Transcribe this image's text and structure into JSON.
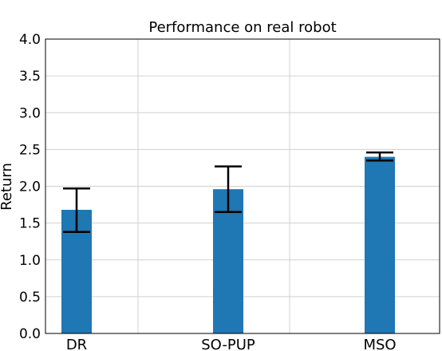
{
  "chart_data": {
    "type": "bar",
    "title": "Performance on real robot",
    "xlabel": "",
    "ylabel": "Return",
    "categories": [
      "DR",
      "SO-PUP",
      "MSO"
    ],
    "values": [
      1.68,
      1.96,
      2.4
    ],
    "error_low": [
      1.38,
      1.65,
      2.35
    ],
    "error_high": [
      1.97,
      2.27,
      2.46
    ],
    "ylim": [
      0,
      4.0
    ],
    "yticks": [
      "0.0",
      "0.5",
      "1.0",
      "1.5",
      "2.0",
      "2.5",
      "3.0",
      "3.5",
      "4.0"
    ],
    "grid": true,
    "bar_color": "#1f77b4",
    "error_color": "#000000"
  }
}
